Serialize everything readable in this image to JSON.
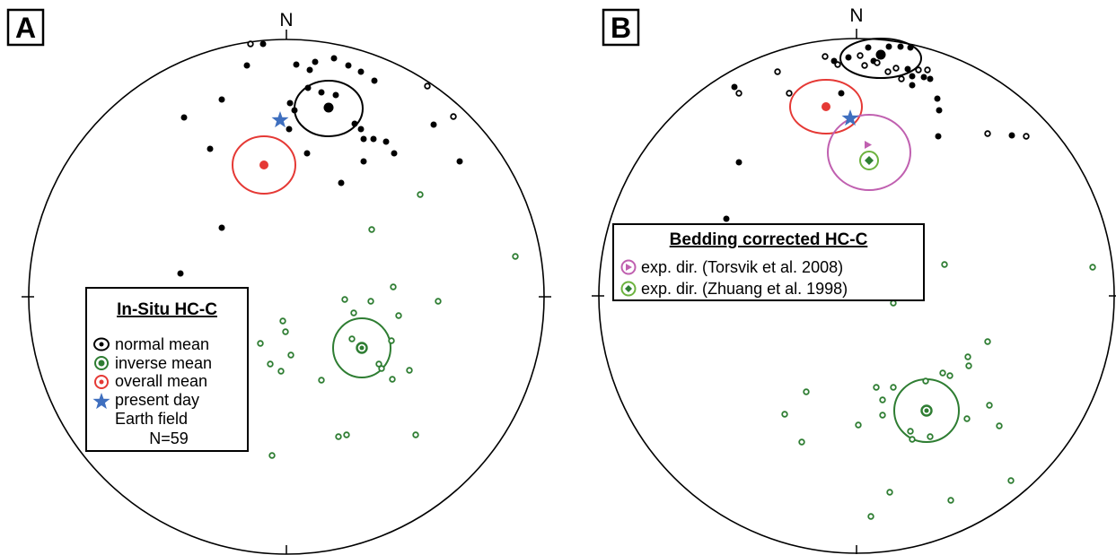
{
  "panels": [
    {
      "letter": "A",
      "north_label": "N",
      "legend": {
        "title": "In-Situ HC-C",
        "items": [
          {
            "label": "normal mean",
            "symbol": "normal-mean"
          },
          {
            "label": "inverse mean",
            "symbol": "inverse-mean"
          },
          {
            "label": "overall mean",
            "symbol": "overall-mean"
          },
          {
            "label": "present day",
            "symbol": "present-day-star"
          },
          {
            "label": "Earth field",
            "symbol": "none"
          },
          {
            "label": "N=59",
            "symbol": "none"
          }
        ]
      }
    },
    {
      "letter": "B",
      "north_label": "N",
      "legend": {
        "title": "Bedding corrected HC-C",
        "items": [
          {
            "label": "exp. dir. (Torsvik et al. 2008)",
            "symbol": "torsvik-expected"
          },
          {
            "label": "exp. dir. (Zhuang et al. 1998)",
            "symbol": "zhuang-expected"
          }
        ]
      }
    }
  ],
  "colors": {
    "normal": "#000000",
    "inverse": "#2e7d32",
    "overall": "#e53935",
    "present_day": "#3f6fbf",
    "torsvik": "#c060b0",
    "zhuang": "#6db33f"
  },
  "icons": [
    "star-icon",
    "triangle-marker-icon",
    "diamond-marker-icon"
  ]
}
